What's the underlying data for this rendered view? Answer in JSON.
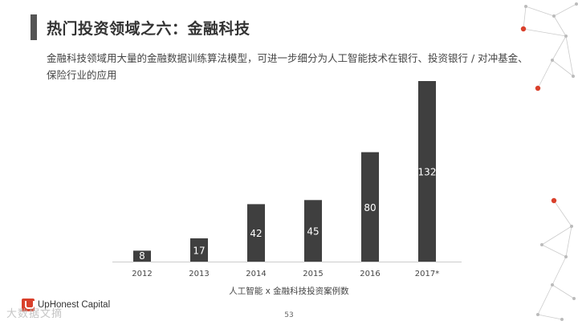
{
  "header": {
    "title": "热门投资领域之六：金融科技",
    "description": "金融科技领域用大量的金融数据训练算法模型，可进一步细分为人工智能技术在银行、投资银行 / 对冲基金、保险行业的应用"
  },
  "chart_data": {
    "type": "bar",
    "categories": [
      "2012",
      "2013",
      "2014",
      "2015",
      "2016",
      "2017*"
    ],
    "values": [
      8,
      17,
      42,
      45,
      80,
      132
    ],
    "value_labels": [
      "8",
      "17",
      "42",
      "45",
      "80",
      "132"
    ],
    "caption": "人工智能 x 金融科技投资案例数",
    "ylim": [
      0,
      132
    ],
    "grid": false,
    "bar_color": "#3f3f3f",
    "label_color": "#ffffff"
  },
  "footer": {
    "logo_text": "UpHonest Capital",
    "watermark": "大数据文摘",
    "page_number": "53"
  },
  "decor": {
    "accent_color": "#d9402b",
    "network_color": "#cccccc"
  }
}
